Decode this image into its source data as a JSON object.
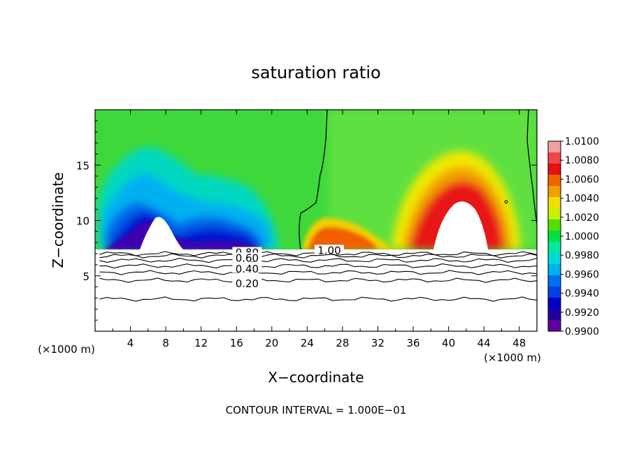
{
  "chart_data": {
    "type": "heatmap",
    "title": "saturation ratio",
    "xlabel": "X−coordinate",
    "ylabel": "Z−coordinate",
    "x_unit_left": "(×1000 m)",
    "x_unit_right": "(×1000 m)",
    "footer": "CONTOUR INTERVAL = 1.000E−01",
    "xlim": [
      0,
      50
    ],
    "ylim": [
      0,
      20
    ],
    "x_ticks": [
      "4",
      "8",
      "12",
      "16",
      "20",
      "24",
      "28",
      "32",
      "36",
      "40",
      "44",
      "48"
    ],
    "y_ticks": [
      "5",
      "10",
      "15"
    ],
    "colorbar": {
      "labels": [
        "1.0100",
        "1.0080",
        "1.0060",
        "1.0040",
        "1.0020",
        "1.0000",
        "0.9980",
        "0.9960",
        "0.9940",
        "0.9920",
        "0.9900"
      ],
      "colors": [
        "#f0a0a0",
        "#f04848",
        "#e81010",
        "#f06400",
        "#f0a000",
        "#f0e000",
        "#c8f000",
        "#50e000",
        "#00e040",
        "#00e8a0",
        "#00d8d8",
        "#00b0f0",
        "#0070f0",
        "#0040e8",
        "#0000c8",
        "#2000a0",
        "#6000a0"
      ]
    },
    "contour_labels": [
      {
        "value": "1.00",
        "x": 26.5,
        "z": 7.3
      },
      {
        "value": "0.80",
        "x": 17.2,
        "z": 7.1
      },
      {
        "value": "0.60",
        "x": 17.2,
        "z": 6.6
      },
      {
        "value": "0.40",
        "x": 17.2,
        "z": 5.6
      },
      {
        "value": "0.20",
        "x": 17.2,
        "z": 4.3
      }
    ],
    "sub_saturated_lines_z": [
      2.9,
      4.6,
      5.3,
      5.9,
      6.4,
      6.8,
      7.0
    ]
  }
}
